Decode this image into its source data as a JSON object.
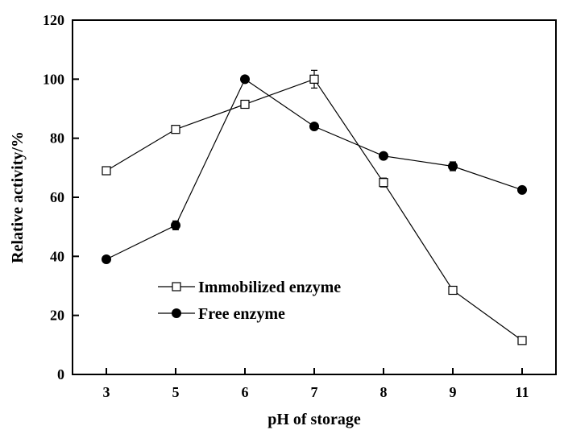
{
  "chart_data": {
    "type": "line",
    "categories": [
      "3",
      "5",
      "6",
      "7",
      "8",
      "9",
      "11"
    ],
    "xlabel": "pH of storage",
    "ylabel": "Relative activity/%",
    "ylim": [
      0,
      120
    ],
    "yticks": [
      0,
      20,
      40,
      60,
      80,
      100,
      120
    ],
    "grid": false,
    "legend_position": "lower-left",
    "series": [
      {
        "name": "Immobilized enzyme",
        "marker": "open-square",
        "color": "#000000",
        "values": [
          69,
          83,
          91.5,
          100,
          65,
          28.5,
          11.5
        ],
        "errors": [
          1,
          1,
          1,
          3,
          1.5,
          1,
          1
        ]
      },
      {
        "name": "Free enzyme",
        "marker": "filled-circle",
        "color": "#000000",
        "values": [
          39,
          50.5,
          100,
          84,
          74,
          70.5,
          62.5
        ],
        "errors": [
          0.5,
          1.5,
          0.5,
          0.5,
          0.5,
          1.5,
          0.5
        ]
      }
    ]
  }
}
